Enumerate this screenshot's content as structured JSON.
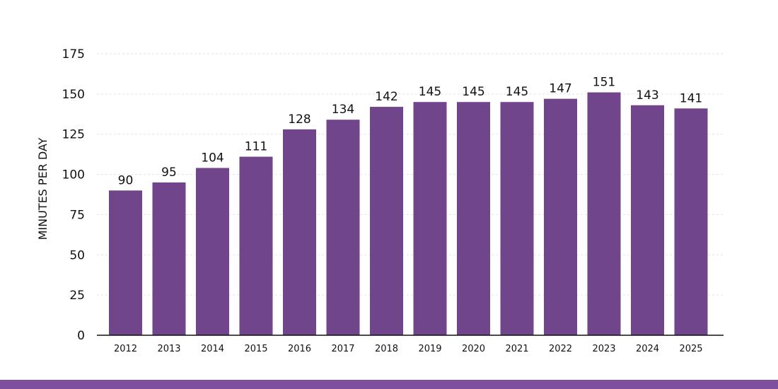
{
  "chart_data": {
    "type": "bar",
    "title": "",
    "xlabel": "",
    "ylabel": "MINUTES PER DAY",
    "ylim": [
      0,
      175
    ],
    "yticks": [
      0,
      25,
      50,
      75,
      100,
      125,
      150,
      175
    ],
    "grid": true,
    "categories": [
      "2012",
      "2013",
      "2014",
      "2015",
      "2016",
      "2017",
      "2018",
      "2019",
      "2020",
      "2021",
      "2022",
      "2023",
      "2024",
      "2025"
    ],
    "values": [
      90,
      95,
      104,
      111,
      128,
      134,
      142,
      145,
      145,
      145,
      147,
      151,
      143,
      141
    ]
  },
  "colors": {
    "bar": "#71458c",
    "strip": "#7e4f9c",
    "grid": "#e2e2e2",
    "text": "#111111"
  }
}
